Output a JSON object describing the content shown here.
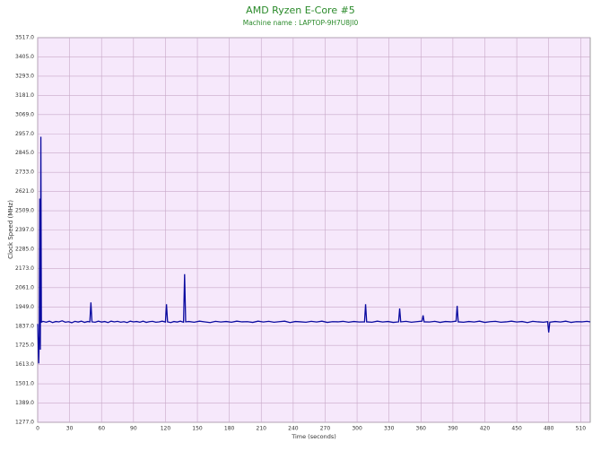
{
  "chart_data": {
    "type": "line",
    "title": "AMD Ryzen E-Core #5",
    "subtitle": "Machine name : LAPTOP-9H7U8JI0",
    "x_label": "Time (seconds)",
    "y_label": "Clock Speed (MHz)",
    "x": [
      0,
      1,
      1.5,
      2,
      2.5,
      3,
      3.5,
      5,
      8,
      11,
      14,
      17,
      20,
      23,
      26,
      29,
      32,
      35,
      38,
      41,
      44,
      47,
      49,
      50,
      51,
      54,
      57,
      60,
      63,
      66,
      69,
      72,
      75,
      78,
      81,
      84,
      87,
      90,
      93,
      96,
      99,
      102,
      105,
      108,
      111,
      114,
      117,
      120,
      121,
      122,
      125,
      128,
      131,
      134,
      137,
      138,
      139,
      142,
      147,
      152,
      157,
      162,
      167,
      172,
      177,
      182,
      187,
      192,
      197,
      202,
      207,
      212,
      217,
      222,
      227,
      232,
      237,
      242,
      247,
      252,
      257,
      262,
      267,
      272,
      277,
      282,
      287,
      292,
      297,
      302,
      307,
      308,
      309,
      314,
      319,
      324,
      329,
      334,
      339,
      340,
      341,
      346,
      351,
      356,
      361,
      362,
      363,
      368,
      373,
      378,
      383,
      388,
      393,
      394,
      395,
      400,
      405,
      410,
      415,
      420,
      425,
      430,
      435,
      440,
      445,
      450,
      455,
      460,
      465,
      470,
      475,
      479,
      480,
      481,
      486,
      491,
      496,
      501,
      506,
      511,
      516,
      519
    ],
    "series": [
      {
        "name": "Clock Speed",
        "color": "#0a0aa0",
        "values": [
          1850,
          1620,
          1780,
          2580,
          1700,
          2940,
          1860,
          1865,
          1860,
          1866,
          1858,
          1864,
          1862,
          1868,
          1860,
          1863,
          1857,
          1865,
          1861,
          1866,
          1859,
          1864,
          1862,
          1975,
          1862,
          1860,
          1866,
          1861,
          1864,
          1858,
          1866,
          1862,
          1865,
          1860,
          1863,
          1858,
          1866,
          1862,
          1864,
          1860,
          1866,
          1859,
          1863,
          1865,
          1860,
          1862,
          1866,
          1861,
          1965,
          1862,
          1858,
          1864,
          1861,
          1866,
          1860,
          2140,
          1862,
          1864,
          1860,
          1866,
          1862,
          1858,
          1865,
          1861,
          1864,
          1860,
          1866,
          1862,
          1863,
          1859,
          1866,
          1861,
          1865,
          1860,
          1863,
          1866,
          1858,
          1864,
          1862,
          1860,
          1865,
          1861,
          1866,
          1859,
          1863,
          1862,
          1865,
          1860,
          1864,
          1861,
          1862,
          1965,
          1862,
          1860,
          1866,
          1861,
          1864,
          1859,
          1862,
          1940,
          1862,
          1865,
          1860,
          1863,
          1866,
          1900,
          1862,
          1861,
          1865,
          1859,
          1864,
          1862,
          1866,
          1955,
          1862,
          1860,
          1864,
          1861,
          1866,
          1859,
          1863,
          1865,
          1860,
          1862,
          1866,
          1861,
          1864,
          1858,
          1865,
          1862,
          1860,
          1863,
          1800,
          1860,
          1864,
          1861,
          1866,
          1859,
          1863,
          1862,
          1865,
          1862
        ]
      }
    ],
    "xlim": [
      0,
      519
    ],
    "ylim": [
      1277,
      3517
    ],
    "xticks": [
      0,
      30,
      60,
      90,
      120,
      150,
      180,
      210,
      240,
      270,
      300,
      330,
      360,
      390,
      420,
      450,
      480,
      510
    ],
    "yticks": [
      {
        "value": 1277,
        "label": "1277.0"
      },
      {
        "value": 1389,
        "label": "1389.0"
      },
      {
        "value": 1501,
        "label": "1501.0"
      },
      {
        "value": 1613,
        "label": "1613.0"
      },
      {
        "value": 1725,
        "label": "1725.0"
      },
      {
        "value": 1837,
        "label": "1837.0"
      },
      {
        "value": 1949,
        "label": "1949.0"
      },
      {
        "value": 2061,
        "label": "2061.0"
      },
      {
        "value": 2173,
        "label": "2173.0"
      },
      {
        "value": 2285,
        "label": "2285.0"
      },
      {
        "value": 2397,
        "label": "2397.0"
      },
      {
        "value": 2509,
        "label": "2509.0"
      },
      {
        "value": 2621,
        "label": "2621.0"
      },
      {
        "value": 2733,
        "label": "2733.0"
      },
      {
        "value": 2845,
        "label": "2845.0"
      },
      {
        "value": 2957,
        "label": "2957.0"
      },
      {
        "value": 3069,
        "label": "3069.0"
      },
      {
        "value": 3181,
        "label": "3181.0"
      },
      {
        "value": 3293,
        "label": "3293.0"
      },
      {
        "value": 3405,
        "label": "3405.0"
      },
      {
        "value": 3517,
        "label": "3517.0"
      }
    ],
    "grid": true
  }
}
